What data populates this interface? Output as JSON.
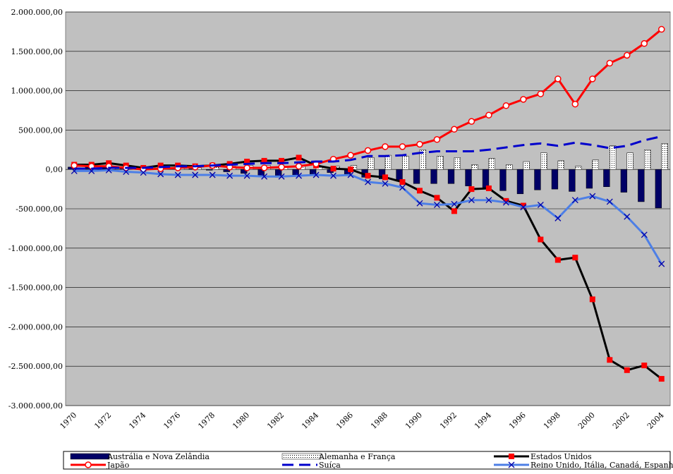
{
  "chart_data": {
    "type": "combo",
    "categories": [
      "1970",
      null,
      "1972",
      null,
      "1974",
      null,
      "1976",
      null,
      "1978",
      null,
      "1980",
      null,
      "1982",
      null,
      "1984",
      null,
      "1986",
      null,
      "1988",
      null,
      "1990",
      null,
      "1992",
      null,
      "1994",
      null,
      "1996",
      null,
      "1998",
      null,
      "2000",
      null,
      "2002",
      null,
      "2004"
    ],
    "ylim": [
      -3000000,
      2000000
    ],
    "yticks": [
      {
        "value": -3000000,
        "label": "-3.000.000,00"
      },
      {
        "value": -2500000,
        "label": "-2.500.000,00"
      },
      {
        "value": -2000000,
        "label": "-2.000.000,00"
      },
      {
        "value": -1500000,
        "label": "-1.500.000,00"
      },
      {
        "value": -1000000,
        "label": "-1.000.000,00"
      },
      {
        "value": -500000,
        "label": "-500.000,00"
      },
      {
        "value": 0,
        "label": "0,00"
      },
      {
        "value": 500000,
        "label": "500.000,00"
      },
      {
        "value": 1000000,
        "label": "1.000.000,00"
      },
      {
        "value": 1500000,
        "label": "1.500.000,00"
      },
      {
        "value": 2000000,
        "label": "2.000.000,00"
      }
    ],
    "grid": true,
    "legend": "bottom",
    "series": [
      {
        "name": "Austrália e Nova Zelândia",
        "type": "bar",
        "color": "#000066",
        "values": [
          30000,
          30000,
          30000,
          20000,
          10000,
          20000,
          20000,
          10000,
          -10000,
          -30000,
          -50000,
          -80000,
          -100000,
          -90000,
          -60000,
          -40000,
          -60000,
          -100000,
          -120000,
          -150000,
          -180000,
          -180000,
          -180000,
          -210000,
          -230000,
          -270000,
          -310000,
          -260000,
          -250000,
          -280000,
          -240000,
          -220000,
          -290000,
          -410000,
          -490000
        ]
      },
      {
        "name": "Alemanha e França",
        "type": "bar",
        "color": "#ffffff",
        "pattern": "dots",
        "values": [
          20000,
          20000,
          30000,
          20000,
          10000,
          20000,
          30000,
          20000,
          30000,
          40000,
          50000,
          50000,
          40000,
          50000,
          40000,
          40000,
          50000,
          150000,
          180000,
          170000,
          250000,
          170000,
          150000,
          60000,
          140000,
          60000,
          100000,
          210000,
          110000,
          40000,
          120000,
          300000,
          210000,
          250000,
          330000
        ]
      },
      {
        "name": "Estados Unidos",
        "type": "line",
        "color": "#000000",
        "marker": "square",
        "marker_color": "#ff0000",
        "values": [
          60000,
          60000,
          80000,
          50000,
          20000,
          50000,
          50000,
          40000,
          50000,
          70000,
          100000,
          110000,
          110000,
          150000,
          50000,
          10000,
          0,
          -80000,
          -100000,
          -160000,
          -270000,
          -360000,
          -530000,
          -250000,
          -240000,
          -400000,
          -460000,
          -890000,
          -1150000,
          -1120000,
          -1650000,
          -2420000,
          -2550000,
          -2490000,
          -2660000
        ]
      },
      {
        "name": "Japão",
        "type": "line",
        "color": "#ff0000",
        "marker": "circle",
        "marker_color": "#ffffff",
        "values": [
          50000,
          40000,
          40000,
          20000,
          0,
          10000,
          20000,
          30000,
          50000,
          30000,
          20000,
          20000,
          30000,
          40000,
          70000,
          130000,
          180000,
          240000,
          290000,
          290000,
          320000,
          380000,
          510000,
          610000,
          690000,
          810000,
          890000,
          960000,
          1150000,
          830000,
          1150000,
          1350000,
          1450000,
          1600000,
          1780000
        ]
      },
      {
        "name": "Suíça",
        "type": "line",
        "color": "#0000cc",
        "dash": "16 8",
        "values": [
          10000,
          10000,
          20000,
          20000,
          20000,
          30000,
          40000,
          40000,
          50000,
          60000,
          70000,
          80000,
          80000,
          90000,
          100000,
          100000,
          120000,
          170000,
          170000,
          180000,
          210000,
          230000,
          230000,
          230000,
          250000,
          280000,
          310000,
          330000,
          300000,
          340000,
          310000,
          270000,
          300000,
          370000,
          420000
        ]
      },
      {
        "name": "Reino Unido, Itália, Canadá, Espanha",
        "type": "line",
        "color": "#4d7fe6",
        "marker": "x",
        "marker_color": "#0000aa",
        "values": [
          -20000,
          -20000,
          -10000,
          -30000,
          -40000,
          -60000,
          -70000,
          -70000,
          -70000,
          -80000,
          -80000,
          -90000,
          -90000,
          -80000,
          -70000,
          -80000,
          -70000,
          -160000,
          -180000,
          -230000,
          -430000,
          -450000,
          -440000,
          -390000,
          -390000,
          -420000,
          -480000,
          -450000,
          -620000,
          -390000,
          -340000,
          -410000,
          -600000,
          -830000,
          -1200000
        ]
      }
    ]
  }
}
